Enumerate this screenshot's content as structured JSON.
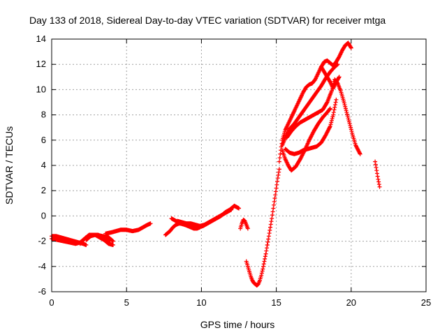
{
  "chart_data": {
    "type": "scatter",
    "title": "Day 133 of 2018, Sidereal Day-to-day VTEC variation (SDTVAR) for receiver mtga",
    "xlabel": "GPS time / hours",
    "ylabel": "SDTVAR / TECUs",
    "xlim": [
      0,
      25
    ],
    "ylim": [
      -6,
      14
    ],
    "xticks": [
      0,
      5,
      10,
      15,
      20,
      25
    ],
    "yticks": [
      -6,
      -4,
      -2,
      0,
      2,
      4,
      6,
      8,
      10,
      12,
      14
    ],
    "grid": true,
    "marker": "plus",
    "color": "#ff0000",
    "series": [
      {
        "x": [
          0.0,
          0.3,
          0.6,
          0.9,
          1.2,
          1.5,
          1.8,
          2.1,
          2.3
        ],
        "y": [
          -1.6,
          -1.6,
          -1.7,
          -1.8,
          -1.9,
          -2.0,
          -2.1,
          -2.2,
          -2.3
        ]
      },
      {
        "x": [
          0.0,
          0.4,
          0.8,
          1.2,
          1.6,
          1.9,
          2.1,
          2.3,
          2.6,
          3.0,
          3.4,
          3.8,
          4.1
        ],
        "y": [
          -1.8,
          -1.9,
          -2.0,
          -2.1,
          -2.2,
          -2.1,
          -1.9,
          -1.7,
          -1.5,
          -1.5,
          -1.6,
          -1.7,
          -2.0
        ]
      },
      {
        "x": [
          1.9,
          2.2,
          2.5,
          2.9,
          3.2,
          3.5,
          3.8,
          4.1
        ],
        "y": [
          -2.2,
          -1.8,
          -1.5,
          -1.5,
          -1.7,
          -1.9,
          -2.2,
          -2.3
        ]
      },
      {
        "x": [
          2.3,
          2.6,
          2.9,
          3.1,
          3.3,
          3.5,
          3.7,
          3.9
        ],
        "y": [
          -1.9,
          -1.6,
          -1.5,
          -1.5,
          -1.6,
          -1.7,
          -1.8,
          -2.0
        ]
      },
      {
        "x": [
          3.6,
          4.0,
          4.3,
          4.6,
          5.0,
          5.4,
          5.8,
          6.1,
          6.4,
          6.6
        ],
        "y": [
          -1.4,
          -1.3,
          -1.2,
          -1.1,
          -1.1,
          -1.2,
          -1.1,
          -0.9,
          -0.7,
          -0.6
        ]
      },
      {
        "x": [
          7.6,
          7.9,
          8.1,
          8.3,
          8.5,
          8.7,
          8.9,
          9.1,
          9.3,
          9.5,
          9.7,
          9.9
        ],
        "y": [
          -1.5,
          -1.2,
          -0.9,
          -0.7,
          -0.6,
          -0.6,
          -0.7,
          -0.8,
          -0.9,
          -1.0,
          -1.0,
          -0.9
        ]
      },
      {
        "x": [
          8.0,
          8.3,
          8.6,
          8.9,
          9.2,
          9.5,
          9.8,
          10.1,
          10.4,
          10.7,
          11.0,
          11.3,
          11.6,
          11.9,
          12.2,
          12.5
        ],
        "y": [
          -0.2,
          -0.4,
          -0.6,
          -0.7,
          -0.8,
          -0.9,
          -0.9,
          -0.8,
          -0.6,
          -0.4,
          -0.2,
          0.0,
          0.3,
          0.5,
          0.8,
          0.6
        ]
      },
      {
        "x": [
          8.4,
          8.7,
          9.0,
          9.3,
          9.6,
          9.9,
          10.2,
          10.5,
          10.8,
          11.1,
          11.4,
          11.7,
          12.0
        ],
        "y": [
          -0.4,
          -0.5,
          -0.6,
          -0.6,
          -0.7,
          -0.8,
          -0.7,
          -0.5,
          -0.3,
          -0.1,
          0.1,
          0.3,
          0.5
        ]
      },
      {
        "x": [
          12.6,
          12.7,
          12.8,
          12.9,
          13.0,
          13.1
        ],
        "y": [
          -1.0,
          -0.6,
          -0.3,
          -0.4,
          -0.7,
          -1.0
        ]
      },
      {
        "x": [
          13.0,
          13.1,
          13.2,
          13.3,
          13.4,
          13.5,
          13.6,
          13.7,
          13.8,
          13.9,
          14.0,
          14.1,
          14.2,
          14.3,
          14.4
        ],
        "y": [
          -3.6,
          -4.0,
          -4.4,
          -4.8,
          -5.1,
          -5.3,
          -5.4,
          -5.5,
          -5.4,
          -5.1,
          -4.7,
          -4.2,
          -3.6,
          -3.0,
          -2.3
        ]
      },
      {
        "x": [
          14.4,
          14.5,
          14.6,
          14.7,
          14.8,
          14.9,
          15.0,
          15.1,
          15.2
        ],
        "y": [
          -2.3,
          -1.6,
          -0.9,
          -0.2,
          0.6,
          1.4,
          2.2,
          3.0,
          3.7
        ]
      },
      {
        "x": [
          15.2,
          15.3,
          15.4,
          15.6,
          15.8,
          16.0,
          16.2,
          16.4,
          16.6,
          16.8,
          17.0,
          17.2,
          17.4,
          17.6,
          17.8,
          18.0,
          18.2,
          18.4,
          18.6,
          18.8,
          19.0,
          19.2,
          19.4,
          19.6,
          19.8,
          20.0
        ],
        "y": [
          4.3,
          5.2,
          6.0,
          6.8,
          7.3,
          7.8,
          8.3,
          8.8,
          9.3,
          9.8,
          10.2,
          10.4,
          10.5,
          10.8,
          11.3,
          11.8,
          12.2,
          12.3,
          12.1,
          11.9,
          12.2,
          12.6,
          13.1,
          13.5,
          13.7,
          13.3
        ]
      },
      {
        "x": [
          15.4,
          15.6,
          15.9,
          16.2,
          16.5,
          16.8,
          17.1,
          17.4,
          17.7,
          18.0,
          18.3,
          18.6,
          18.9,
          19.1
        ],
        "y": [
          5.6,
          6.2,
          6.9,
          7.3,
          7.8,
          8.3,
          8.8,
          9.3,
          9.8,
          10.3,
          10.9,
          11.4,
          11.8,
          12.0
        ]
      },
      {
        "x": [
          15.4,
          15.6,
          15.8,
          16.0,
          16.3,
          16.6,
          16.9,
          17.2,
          17.5,
          17.8,
          18.1,
          18.4,
          18.6
        ],
        "y": [
          5.2,
          4.5,
          4.0,
          3.6,
          3.9,
          4.5,
          5.2,
          6.0,
          6.7,
          7.3,
          7.8,
          8.2,
          8.5
        ]
      },
      {
        "x": [
          15.6,
          15.9,
          16.2,
          16.5,
          16.8,
          17.1,
          17.4,
          17.7,
          18.0,
          18.3,
          18.6,
          18.8,
          19.0
        ],
        "y": [
          5.3,
          5.0,
          4.9,
          5.0,
          5.2,
          5.3,
          5.4,
          5.5,
          5.8,
          6.4,
          7.1,
          8.0,
          9.2
        ]
      },
      {
        "x": [
          15.7,
          16.0,
          16.3,
          16.6,
          16.9,
          17.2,
          17.5,
          17.8,
          18.1,
          18.4,
          18.7,
          18.9,
          19.1,
          19.3,
          19.5,
          19.7,
          19.9,
          20.1,
          20.3,
          20.6
        ],
        "y": [
          6.2,
          6.7,
          7.1,
          7.4,
          7.6,
          7.8,
          8.0,
          8.2,
          8.4,
          9.0,
          9.9,
          10.8,
          10.5,
          9.9,
          9.1,
          8.2,
          7.3,
          6.4,
          5.6,
          4.9
        ]
      },
      {
        "x": [
          18.0,
          18.3,
          18.6,
          18.8,
          19.0,
          19.2
        ],
        "y": [
          11.8,
          11.2,
          10.6,
          10.1,
          10.6,
          11.0
        ]
      },
      {
        "x": [
          21.6,
          21.7,
          21.8,
          21.9
        ],
        "y": [
          4.3,
          3.6,
          2.9,
          2.3
        ]
      }
    ]
  }
}
